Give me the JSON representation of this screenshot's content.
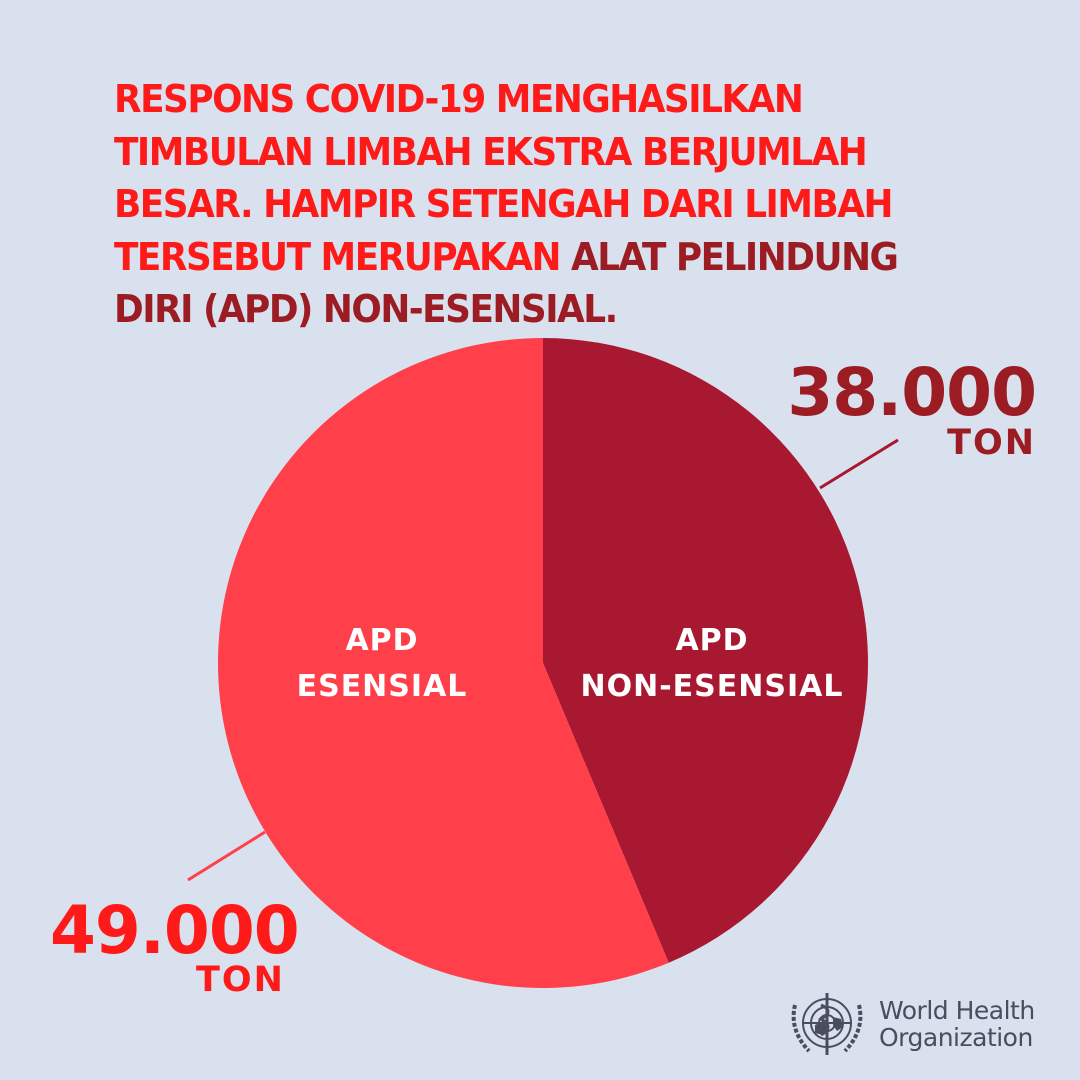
{
  "title": {
    "part1": "RESPONS COVID-19 MENGHASILKAN TIMBULAN LIMBAH EKSTRA BERJUMLAH BESAR. HAMPIR SETENGAH DARI LIMBAH TERSEBUT MERUPAKAN ",
    "part2": "ALAT PELINDUNG DIRI (APD) NON-ESENSIAL."
  },
  "chart_data": {
    "type": "pie",
    "title": "RESPONS COVID-19 MENGHASILKAN TIMBULAN LIMBAH EKSTRA BERJUMLAH BESAR. HAMPIR SETENGAH DARI LIMBAH TERSEBUT MERUPAKAN ALAT PELINDUNG DIRI (APD) NON-ESENSIAL.",
    "unit": "TON",
    "slices": [
      {
        "label_line1": "APD",
        "label_line2": "NON-ESENSIAL",
        "value": 38000,
        "value_label": "38.000",
        "unit_label": "TON",
        "color": "#a81830",
        "value_color": "#9b1c22"
      },
      {
        "label_line1": "APD",
        "label_line2": "ESENSIAL",
        "value": 49000,
        "value_label": "49.000",
        "unit_label": "TON",
        "color": "#ff3f4a",
        "value_color": "#ff1a1a"
      }
    ],
    "start": "top",
    "direction": "clockwise"
  },
  "logo": {
    "line1": "World Health",
    "line2": "Organization"
  },
  "colors": {
    "background": "#d9e1ee",
    "title_red": "#ff1a1a",
    "title_dark": "#9b1c22",
    "logo_gray": "#4b4d5e"
  }
}
